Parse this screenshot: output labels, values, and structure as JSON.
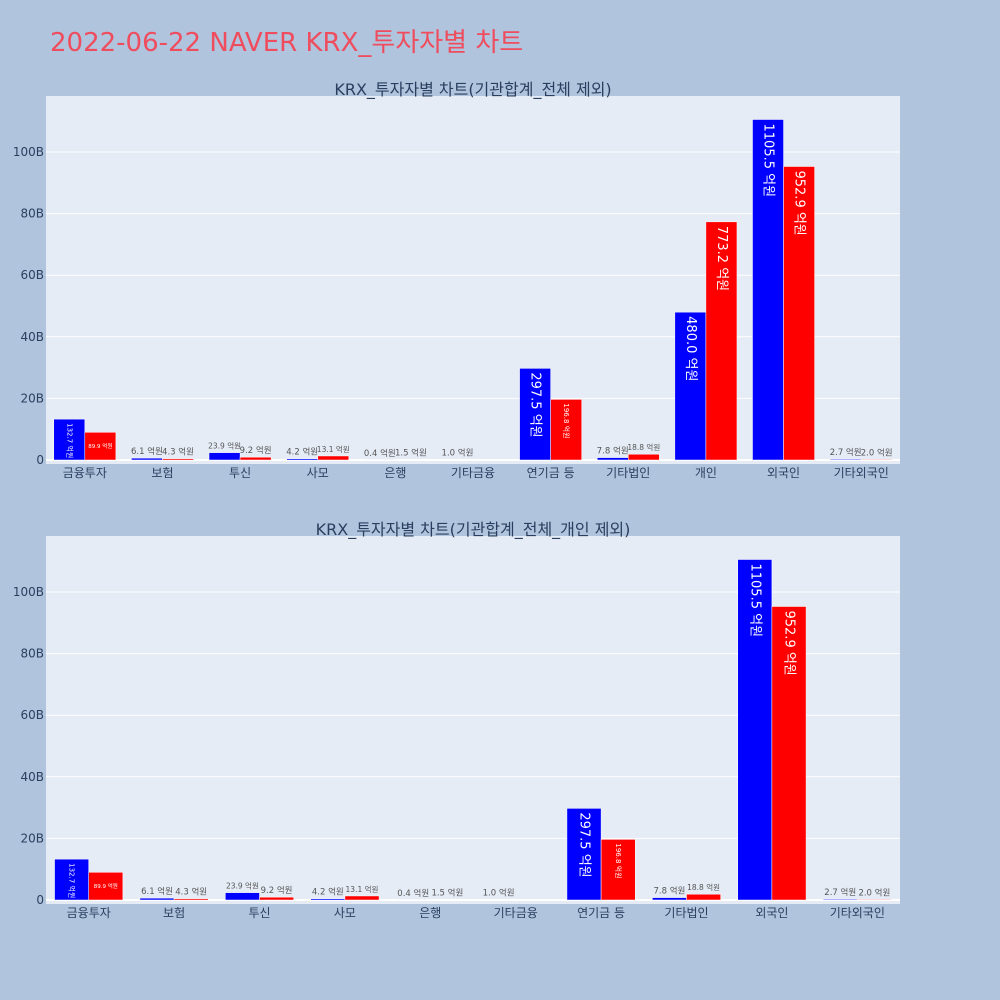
{
  "title": "2022-06-22 NAVER KRX_투자자별 차트",
  "colors": {
    "background": "#b0c4de",
    "plot_bg": "#e5ecf6",
    "buy": "#0000ff",
    "sell": "#ff0000",
    "title": "#ef4d5d"
  },
  "chart_data": [
    {
      "type": "bar",
      "title": "KRX_투자자별 차트(기관합계_전체 제외)",
      "categories": [
        "금융투자",
        "보험",
        "투신",
        "사모",
        "은행",
        "기타금융",
        "연기금 등",
        "기타법인",
        "개인",
        "외국인",
        "기타외국인"
      ],
      "series": [
        {
          "color": "#0000ff",
          "values": [
            13270000000,
            610000000,
            2390000000,
            420000000,
            40000000,
            100000000,
            29750000000,
            780000000,
            48000000000,
            110550000000,
            270000000
          ],
          "labels": [
            "132.7 억원",
            "6.1 억원",
            "23.9 억원",
            "4.2 억원",
            "0.4 억원",
            "1.0 억원",
            "297.5 억원",
            "7.8 억원",
            "480.0 억원",
            "1105.5 억원",
            "2.7 억원"
          ]
        },
        {
          "color": "#ff0000",
          "values": [
            8990000000,
            430000000,
            920000000,
            1310000000,
            150000000,
            0,
            19680000000,
            1880000000,
            77320000000,
            95290000000,
            200000000
          ],
          "labels": [
            "89.9 억원",
            "4.3 억원",
            "9.2 억원",
            "13.1 억원",
            "1.5 억원",
            "",
            "196.8 억원",
            "18.8 억원",
            "773.2 억원",
            "952.9 억원",
            "2.0 억원"
          ]
        }
      ],
      "y_ticks": [
        "0",
        "20B",
        "40B",
        "60B",
        "80B",
        "100B"
      ],
      "ylim": [
        0,
        116360000000
      ],
      "grid": true
    },
    {
      "type": "bar",
      "title": "KRX_투자자별 차트(기관합계_전체_개인 제외)",
      "categories": [
        "금융투자",
        "보험",
        "투신",
        "사모",
        "은행",
        "기타금융",
        "연기금 등",
        "기타법인",
        "외국인",
        "기타외국인"
      ],
      "series": [
        {
          "color": "#0000ff",
          "values": [
            13270000000,
            610000000,
            2390000000,
            420000000,
            40000000,
            100000000,
            29750000000,
            780000000,
            110550000000,
            270000000
          ],
          "labels": [
            "132.7 억원",
            "6.1 억원",
            "23.9 억원",
            "4.2 억원",
            "0.4 억원",
            "1.0 억원",
            "297.5 억원",
            "7.8 억원",
            "1105.5 억원",
            "2.7 억원"
          ]
        },
        {
          "color": "#ff0000",
          "values": [
            8990000000,
            430000000,
            920000000,
            1310000000,
            150000000,
            0,
            19680000000,
            1880000000,
            95290000000,
            200000000
          ],
          "labels": [
            "89.9 억원",
            "4.3 억원",
            "9.2 억원",
            "13.1 억원",
            "1.5 억원",
            "",
            "196.8 억원",
            "18.8 억원",
            "952.9 억원",
            "2.0 억원"
          ]
        }
      ],
      "y_ticks": [
        "0",
        "20B",
        "40B",
        "60B",
        "80B",
        "100B"
      ],
      "ylim": [
        0,
        116360000000
      ],
      "grid": true
    }
  ]
}
